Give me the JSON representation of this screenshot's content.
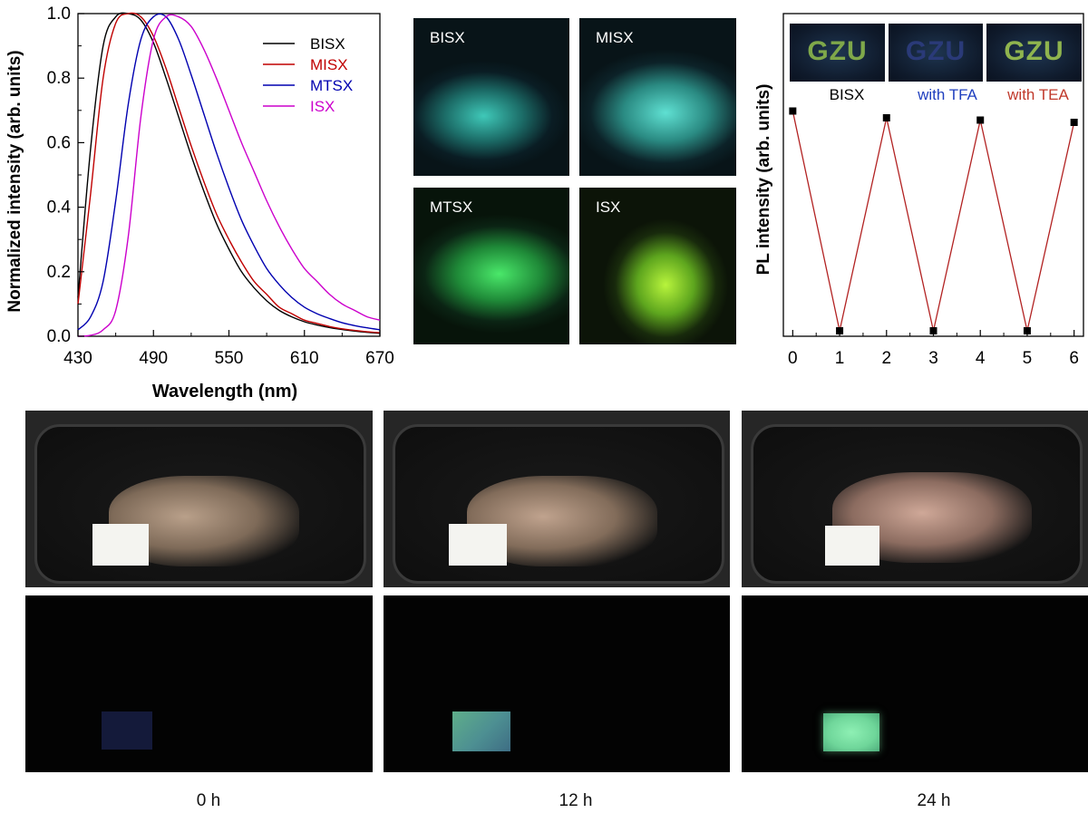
{
  "chart_data": [
    {
      "type": "line",
      "xlabel": "Wavelength (nm)",
      "ylabel": "Normalized intensity (arb. units)",
      "xlim": [
        430,
        670
      ],
      "ylim": [
        0,
        1.0
      ],
      "xticks": [
        "430",
        "490",
        "550",
        "610",
        "670"
      ],
      "yticks": [
        "0.0",
        "0.2",
        "0.4",
        "0.6",
        "0.8",
        "1.0"
      ],
      "legend_position": "top-right",
      "x": [
        430,
        440,
        450,
        460,
        470,
        480,
        490,
        500,
        510,
        520,
        530,
        540,
        550,
        560,
        570,
        580,
        590,
        600,
        610,
        620,
        630,
        640,
        650,
        660,
        670
      ],
      "series": [
        {
          "name": "BISX",
          "color": "#000000",
          "values": [
            0.12,
            0.58,
            0.9,
            0.99,
            1.0,
            0.98,
            0.91,
            0.8,
            0.68,
            0.56,
            0.45,
            0.35,
            0.27,
            0.2,
            0.15,
            0.11,
            0.08,
            0.06,
            0.045,
            0.035,
            0.027,
            0.021,
            0.016,
            0.012,
            0.009
          ]
        },
        {
          "name": "MISX",
          "color": "#c00000",
          "values": [
            0.1,
            0.44,
            0.8,
            0.97,
            1.0,
            0.99,
            0.93,
            0.83,
            0.71,
            0.59,
            0.48,
            0.38,
            0.3,
            0.23,
            0.17,
            0.13,
            0.09,
            0.07,
            0.05,
            0.04,
            0.03,
            0.023,
            0.018,
            0.014,
            0.011
          ]
        },
        {
          "name": "MTSX",
          "color": "#0000b0",
          "values": [
            0.02,
            0.06,
            0.17,
            0.42,
            0.72,
            0.92,
            0.99,
            0.99,
            0.92,
            0.81,
            0.69,
            0.57,
            0.46,
            0.36,
            0.28,
            0.21,
            0.16,
            0.12,
            0.09,
            0.07,
            0.055,
            0.042,
            0.033,
            0.026,
            0.02
          ]
        },
        {
          "name": "ISX",
          "color": "#cc00cc",
          "values": [
            0.0,
            0.003,
            0.02,
            0.08,
            0.31,
            0.68,
            0.92,
            0.99,
            0.99,
            0.96,
            0.89,
            0.8,
            0.7,
            0.6,
            0.51,
            0.42,
            0.34,
            0.27,
            0.21,
            0.17,
            0.13,
            0.1,
            0.08,
            0.06,
            0.05
          ]
        }
      ]
    },
    {
      "type": "line",
      "ylabel": "PL intensity (arb. units)",
      "xlim": [
        -0.2,
        6.2
      ],
      "xticks": [
        "0",
        "1",
        "2",
        "3",
        "4",
        "5",
        "6"
      ],
      "x": [
        0,
        1,
        2,
        3,
        4,
        5,
        6
      ],
      "series": [
        {
          "color": "#b22222",
          "values": [
            0.97,
            0.0,
            0.94,
            0.0,
            0.93,
            0.0,
            0.92
          ]
        }
      ],
      "header_labels": [
        {
          "text": "BISX",
          "color": "#000000"
        },
        {
          "text": "with TFA",
          "color": "#1f3fbf"
        },
        {
          "text": "with TEA",
          "color": "#c0392b"
        }
      ],
      "inset_images": [
        {
          "text": "GZU",
          "color": "#7fa84a"
        },
        {
          "text": "GZU",
          "color": "#2a3a78"
        },
        {
          "text": "GZU",
          "color": "#8fb44e"
        }
      ]
    }
  ],
  "photos": {
    "powders": [
      {
        "label": "BISX",
        "glow": "#4fe0d0"
      },
      {
        "label": "MISX",
        "glow": "#5fe8d8"
      },
      {
        "label": "MTSX",
        "glow": "#3fe060"
      },
      {
        "label": "ISX",
        "glow": "#9ef03a"
      }
    ],
    "time_labels": [
      "0 h",
      "12 h",
      "24 h"
    ],
    "dark_patch_colors": [
      "#141a3a",
      "#5fa88a",
      "#7be6a6"
    ]
  }
}
